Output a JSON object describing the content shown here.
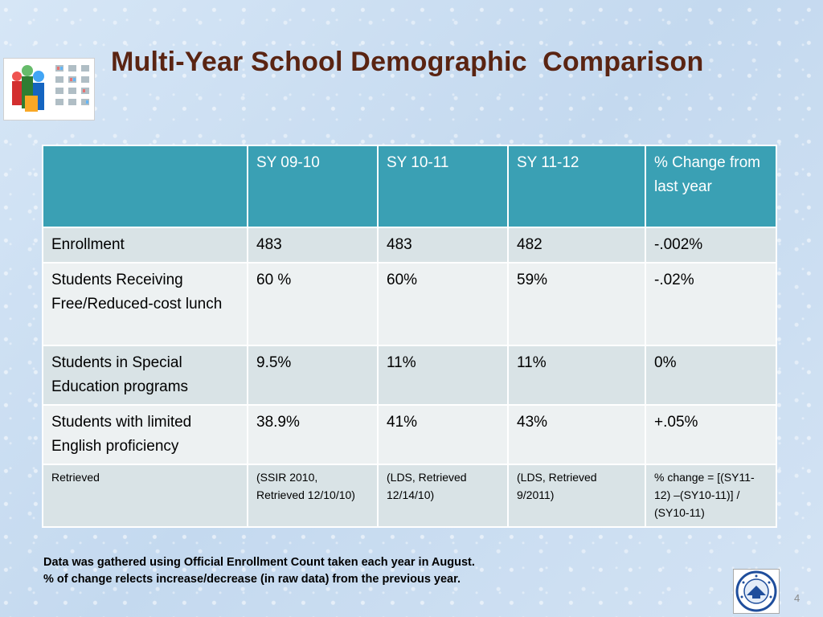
{
  "slide": {
    "title": "Multi-Year School Demographic  Comparison",
    "page_number": "4"
  },
  "table": {
    "header": [
      "",
      "SY 09-10",
      "SY 10-11",
      "SY 11-12",
      "% Change from last year"
    ],
    "rows": [
      {
        "label": "Enrollment",
        "v1": "483",
        "v2": "483",
        "v3": "482",
        "change": "-.002%"
      },
      {
        "label": "Students Receiving Free/Reduced-cost lunch",
        "v1": "60 %",
        "v2": "60%",
        "v3": "59%",
        "change": "-.02%"
      },
      {
        "label": "Students in Special Education programs",
        "v1": "9.5%",
        "v2": "11%",
        "v3": "11%",
        "change": "0%"
      },
      {
        "label": "Students with limited English proficiency",
        "v1": "38.9%",
        "v2": "41%",
        "v3": "43%",
        "change": "+.05%"
      }
    ],
    "source_row": {
      "label": "Retrieved",
      "v1": "(SSIR 2010, Retrieved 12/10/10)",
      "v2": "(LDS, Retrieved 12/14/10)",
      "v3": "(LDS, Retrieved 9/2011)",
      "change": "% change = [(SY11-12) –(SY10-11)] / (SY10-11)"
    }
  },
  "footnote": {
    "line1": "Data was gathered using Official Enrollment Count taken each year in August.",
    "line2": "% of change relects increase/decrease (in raw data) from the previous year."
  },
  "colors": {
    "header_bg": "#3aa0b4",
    "title": "#5a2412",
    "change_text": "#e60000"
  },
  "icons": {
    "left_logo": "students-logo-icon",
    "seal": "department-of-education-seal-icon"
  }
}
